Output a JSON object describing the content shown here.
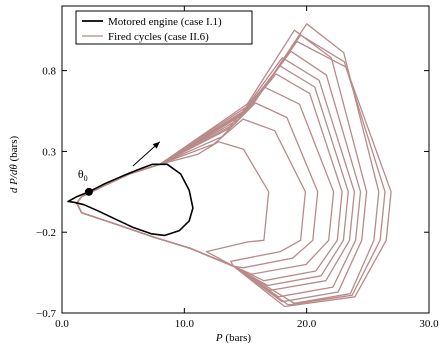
{
  "chart_data": {
    "type": "line",
    "xlabel": {
      "symbol": "P",
      "unit": "(bars)"
    },
    "ylabel": {
      "symbol": "d P/dθ",
      "unit": "(bars)"
    },
    "xlim": [
      0,
      30
    ],
    "ylim": [
      -0.7,
      1.2
    ],
    "xticks": [
      {
        "value": 0,
        "label": "0.0"
      },
      {
        "value": 10,
        "label": "10.0"
      },
      {
        "value": 20,
        "label": "20.0"
      },
      {
        "value": 30,
        "label": "30.0"
      }
    ],
    "yticks": [
      {
        "value": -0.7,
        "label": "−0.7"
      },
      {
        "value": -0.2,
        "label": "−0.2"
      },
      {
        "value": 0.3,
        "label": "0.3"
      },
      {
        "value": 0.8,
        "label": "0.8"
      }
    ],
    "legend": {
      "placement": "top-left",
      "entries": [
        {
          "label": "Motored engine (case I.1)",
          "color": "#000000"
        },
        {
          "label": "Fired cycles (case II.6)",
          "color": "#b88a8a"
        }
      ]
    },
    "annotations": {
      "theta0": {
        "label": "θ",
        "subscript": "0",
        "x": 2.2,
        "y": 0.05
      },
      "arrow": {
        "from": [
          5.8,
          0.21
        ],
        "to": [
          8.0,
          0.36
        ]
      }
    },
    "motored": {
      "color": "#000000",
      "points": [
        [
          0.5,
          -0.01
        ],
        [
          1.2,
          0.02
        ],
        [
          2.2,
          0.05
        ],
        [
          3.5,
          0.1
        ],
        [
          5.0,
          0.15
        ],
        [
          6.3,
          0.19
        ],
        [
          7.4,
          0.22
        ],
        [
          8.6,
          0.22
        ],
        [
          9.7,
          0.16
        ],
        [
          10.4,
          0.06
        ],
        [
          10.7,
          -0.05
        ],
        [
          10.4,
          -0.13
        ],
        [
          9.6,
          -0.19
        ],
        [
          8.4,
          -0.22
        ],
        [
          7.3,
          -0.21
        ],
        [
          5.8,
          -0.17
        ],
        [
          4.4,
          -0.12
        ],
        [
          3.0,
          -0.07
        ],
        [
          1.8,
          -0.03
        ],
        [
          1.0,
          -0.015
        ]
      ]
    },
    "fired": {
      "color": "#b88a8a",
      "cycles": [
        {
          "Pmax": 19.0,
          "dPmax": 1.05,
          "Pend": 24.5,
          "dPmin": -0.63
        },
        {
          "Pmax": 17.5,
          "dPmax": 0.78,
          "Pend": 22.5,
          "dPmin": -0.5
        },
        {
          "Pmax": 18.0,
          "dPmax": 0.88,
          "Pend": 23.5,
          "dPmin": -0.56
        },
        {
          "Pmax": 20.0,
          "dPmax": 1.09,
          "Pend": 25.5,
          "dPmin": -0.64
        },
        {
          "Pmax": 16.5,
          "dPmax": 0.7,
          "Pend": 21.8,
          "dPmin": -0.46
        },
        {
          "Pmax": 19.2,
          "dPmax": 0.98,
          "Pend": 26.5,
          "dPmin": -0.66
        },
        {
          "Pmax": 17.8,
          "dPmax": 0.83,
          "Pend": 23.0,
          "dPmin": -0.53
        },
        {
          "Pmax": 15.8,
          "dPmax": 0.6,
          "Pend": 20.5,
          "dPmin": -0.42
        },
        {
          "Pmax": 14.8,
          "dPmax": 0.5,
          "Pend": 19.5,
          "dPmin": -0.38
        },
        {
          "Pmax": 18.7,
          "dPmax": 0.92,
          "Pend": 24.0,
          "dPmin": -0.6
        },
        {
          "Pmax": 19.5,
          "dPmax": 1.02,
          "Pend": 26.0,
          "dPmin": -0.65
        },
        {
          "Pmax": 12.8,
          "dPmax": 0.36,
          "Pend": 16.5,
          "dPmin": -0.32
        }
      ]
    }
  }
}
